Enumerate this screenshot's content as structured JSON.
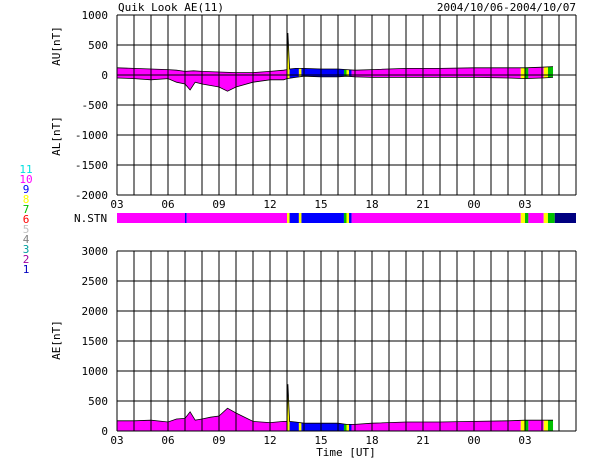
{
  "chart_data": [
    {
      "type": "area",
      "title": "Quik Look AE(11)",
      "date_range": "2004/10/06-2004/10/07",
      "ylabel_upper": "AU[nT]",
      "ylabel_lower": "AL[nT]",
      "ylim": [
        -2000,
        1000
      ],
      "yticks": [
        "1000",
        "500",
        "0",
        "-500",
        "-1000",
        "-1500",
        "-2000"
      ],
      "grid": true,
      "x_ticks": [
        "03",
        "06",
        "09",
        "12",
        "15",
        "18",
        "21",
        "00",
        "03"
      ],
      "segments": [
        {
          "start": 3.0,
          "end": 13.0,
          "color": "#ff00ff"
        },
        {
          "start": 13.0,
          "end": 13.15,
          "color": "#ffff00"
        },
        {
          "start": 13.15,
          "end": 13.7,
          "color": "#0000ff"
        },
        {
          "start": 13.7,
          "end": 13.85,
          "color": "#ffff00"
        },
        {
          "start": 13.85,
          "end": 16.35,
          "color": "#0000ff"
        },
        {
          "start": 16.35,
          "end": 16.5,
          "color": "#00c000"
        },
        {
          "start": 16.5,
          "end": 16.65,
          "color": "#ffff00"
        },
        {
          "start": 16.65,
          "end": 16.8,
          "color": "#0000ff"
        },
        {
          "start": 16.8,
          "end": 26.75,
          "color": "#ff00ff"
        },
        {
          "start": 26.75,
          "end": 27.0,
          "color": "#ffff00"
        },
        {
          "start": 27.0,
          "end": 27.2,
          "color": "#00c000"
        },
        {
          "start": 27.2,
          "end": 28.1,
          "color": "#ff00ff"
        },
        {
          "start": 28.1,
          "end": 28.35,
          "color": "#ffff00"
        },
        {
          "start": 28.35,
          "end": 28.65,
          "color": "#00c000"
        }
      ],
      "au": {
        "x": [
          3.0,
          4.0,
          5.0,
          6.0,
          6.5,
          7.0,
          7.5,
          8.0,
          9.0,
          10.0,
          11.0,
          12.0,
          12.8,
          13.0,
          13.05,
          13.15,
          13.5,
          14.0,
          15.0,
          16.0,
          16.5,
          17.0,
          18.0,
          20.0,
          22.0,
          24.0,
          26.0,
          27.0,
          28.0,
          28.65
        ],
        "y": [
          120,
          110,
          100,
          90,
          80,
          60,
          70,
          60,
          50,
          40,
          40,
          60,
          80,
          90,
          700,
          100,
          110,
          110,
          100,
          100,
          90,
          80,
          90,
          110,
          110,
          120,
          120,
          120,
          130,
          140
        ]
      },
      "al": {
        "x": [
          3.0,
          4.0,
          5.0,
          6.0,
          6.5,
          7.0,
          7.3,
          7.6,
          8.0,
          9.0,
          9.5,
          10.0,
          11.0,
          12.0,
          12.8,
          13.0,
          13.5,
          14.0,
          15.0,
          16.0,
          16.5,
          17.0,
          18.0,
          20.0,
          22.0,
          24.0,
          26.0,
          27.0,
          28.0,
          28.65
        ],
        "y": [
          -50,
          -60,
          -80,
          -60,
          -120,
          -150,
          -250,
          -120,
          -150,
          -200,
          -270,
          -200,
          -120,
          -80,
          -80,
          -60,
          -40,
          -20,
          -30,
          -30,
          -20,
          -30,
          -40,
          -40,
          -40,
          -40,
          -50,
          -60,
          -50,
          -40
        ]
      }
    },
    {
      "type": "bar",
      "label": "N.STN",
      "segments": [
        {
          "start": 3.0,
          "end": 7.0,
          "color": "#ff00ff"
        },
        {
          "start": 7.0,
          "end": 7.1,
          "color": "#0000ff"
        },
        {
          "start": 7.1,
          "end": 13.0,
          "color": "#ff00ff"
        },
        {
          "start": 13.0,
          "end": 13.15,
          "color": "#ffff00"
        },
        {
          "start": 13.15,
          "end": 13.7,
          "color": "#0000ff"
        },
        {
          "start": 13.7,
          "end": 13.85,
          "color": "#ffff00"
        },
        {
          "start": 13.85,
          "end": 16.35,
          "color": "#0000ff"
        },
        {
          "start": 16.35,
          "end": 16.5,
          "color": "#00c000"
        },
        {
          "start": 16.5,
          "end": 16.65,
          "color": "#ffff00"
        },
        {
          "start": 16.65,
          "end": 16.8,
          "color": "#0000ff"
        },
        {
          "start": 16.8,
          "end": 26.75,
          "color": "#ff00ff"
        },
        {
          "start": 26.75,
          "end": 27.0,
          "color": "#ffff00"
        },
        {
          "start": 27.0,
          "end": 27.2,
          "color": "#00c000"
        },
        {
          "start": 27.2,
          "end": 28.1,
          "color": "#ff00ff"
        },
        {
          "start": 28.1,
          "end": 28.35,
          "color": "#ffff00"
        },
        {
          "start": 28.35,
          "end": 28.75,
          "color": "#00c000"
        },
        {
          "start": 28.75,
          "end": 30.0,
          "color": "#000080"
        }
      ],
      "legend": [
        {
          "label": "11",
          "color": "#00e0e0"
        },
        {
          "label": "10",
          "color": "#ff00ff"
        },
        {
          "label": "9",
          "color": "#0000ff"
        },
        {
          "label": "8",
          "color": "#ffff00"
        },
        {
          "label": "7",
          "color": "#00c000"
        },
        {
          "label": "6",
          "color": "#ff0000"
        },
        {
          "label": "5",
          "color": "#c0c0c0"
        },
        {
          "label": "4",
          "color": "#808080"
        },
        {
          "label": "3",
          "color": "#00a0a0"
        },
        {
          "label": "2",
          "color": "#a000a0"
        },
        {
          "label": "1",
          "color": "#0000c0"
        }
      ]
    },
    {
      "type": "area",
      "ylabel": "AE[nT]",
      "xlabel": "Time [UT]",
      "ylim": [
        0,
        3000
      ],
      "yticks": [
        "3000",
        "2500",
        "2000",
        "1500",
        "1000",
        "500",
        "0"
      ],
      "grid": true,
      "x_ticks": [
        "03",
        "06",
        "09",
        "12",
        "15",
        "18",
        "21",
        "00",
        "03"
      ],
      "x": [
        3.0,
        4.0,
        5.0,
        6.0,
        6.5,
        7.0,
        7.3,
        7.6,
        8.0,
        8.5,
        9.0,
        9.5,
        10.0,
        11.0,
        12.0,
        12.8,
        13.0,
        13.05,
        13.15,
        13.5,
        14.0,
        15.0,
        16.0,
        16.5,
        17.0,
        18.0,
        20.0,
        22.0,
        24.0,
        26.0,
        27.0,
        28.0,
        28.65
      ],
      "y": [
        170,
        170,
        180,
        150,
        200,
        210,
        320,
        180,
        200,
        230,
        250,
        380,
        300,
        160,
        140,
        160,
        160,
        780,
        160,
        150,
        130,
        130,
        130,
        110,
        110,
        130,
        150,
        150,
        160,
        170,
        180,
        180,
        180
      ],
      "segments": [
        {
          "start": 3.0,
          "end": 13.0,
          "color": "#ff00ff"
        },
        {
          "start": 13.0,
          "end": 13.15,
          "color": "#ffff00"
        },
        {
          "start": 13.15,
          "end": 13.7,
          "color": "#0000ff"
        },
        {
          "start": 13.7,
          "end": 13.85,
          "color": "#ffff00"
        },
        {
          "start": 13.85,
          "end": 16.35,
          "color": "#0000ff"
        },
        {
          "start": 16.35,
          "end": 16.5,
          "color": "#00c000"
        },
        {
          "start": 16.5,
          "end": 16.65,
          "color": "#ffff00"
        },
        {
          "start": 16.65,
          "end": 16.8,
          "color": "#0000ff"
        },
        {
          "start": 16.8,
          "end": 26.75,
          "color": "#ff00ff"
        },
        {
          "start": 26.75,
          "end": 27.0,
          "color": "#ffff00"
        },
        {
          "start": 27.0,
          "end": 27.2,
          "color": "#00c000"
        },
        {
          "start": 27.2,
          "end": 28.1,
          "color": "#ff00ff"
        },
        {
          "start": 28.1,
          "end": 28.35,
          "color": "#ffff00"
        },
        {
          "start": 28.35,
          "end": 28.65,
          "color": "#00c000"
        }
      ]
    }
  ]
}
